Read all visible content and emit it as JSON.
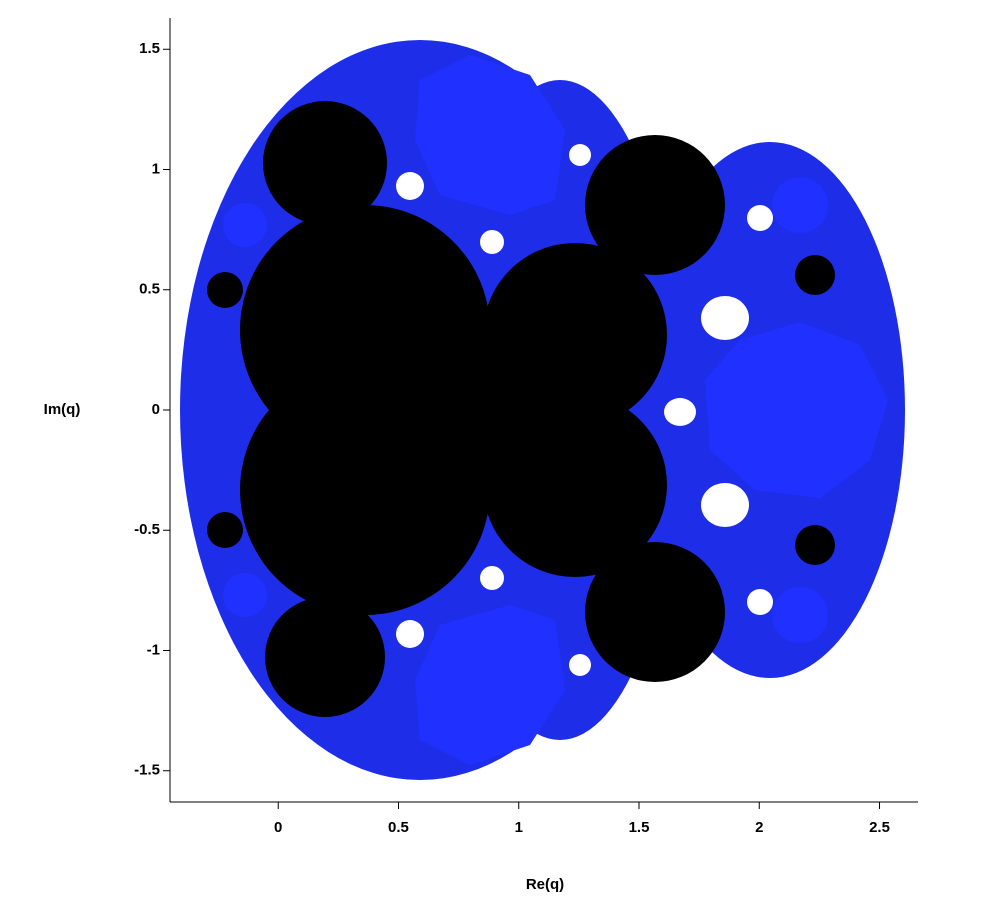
{
  "chart_data": {
    "type": "region",
    "xlabel": "Re(q)",
    "ylabel": "Im(q)",
    "xlim": [
      -0.45,
      2.66
    ],
    "ylim": [
      -1.63,
      1.63
    ],
    "xticks": [
      0,
      0.5,
      1,
      1.5,
      2,
      2.5
    ],
    "yticks": [
      -1.5,
      -1,
      -0.5,
      0,
      0.5,
      1,
      1.5
    ]
  }
}
